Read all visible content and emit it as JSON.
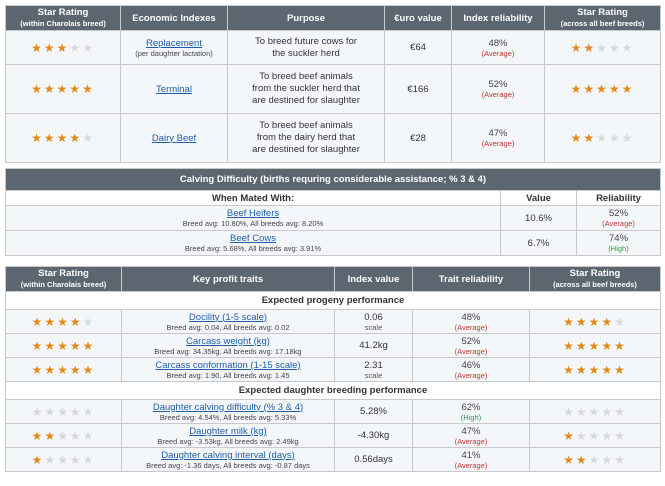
{
  "table1": {
    "headers": {
      "star_rating_within": "Star Rating",
      "star_rating_within_sub": "(within Charolais breed)",
      "economic_indexes": "Economic Indexes",
      "purpose": "Purpose",
      "euro_value": "€uro value",
      "index_reliability": "Index reliability",
      "star_rating_across": "Star Rating",
      "star_rating_across_sub": "(across all beef breeds)"
    },
    "rows": [
      {
        "stars_within": 3,
        "index": "Replacement",
        "index_sub": "(per daughter lactation)",
        "purpose_lines": [
          "To breed future cows for",
          "the suckler herd"
        ],
        "value": "€64",
        "reliability": "48%",
        "reliability_label": "(Average)",
        "stars_across": 2
      },
      {
        "stars_within": 5,
        "index": "Terminal",
        "index_sub": "",
        "purpose_lines": [
          "To breed beef animals",
          "from the suckler herd that",
          "are destined for slaughter"
        ],
        "value": "€166",
        "reliability": "52%",
        "reliability_label": "(Average)",
        "stars_across": 5
      },
      {
        "stars_within": 4,
        "index": "Dairy Beef",
        "index_sub": "",
        "purpose_lines": [
          "To breed beef animals",
          "from the dairy herd that",
          "are destined for slaughter"
        ],
        "value": "€28",
        "reliability": "47%",
        "reliability_label": "(Average)",
        "stars_across": 2
      }
    ]
  },
  "table2": {
    "title": "Calving Difficulty (births requring considerable assistance; % 3 & 4)",
    "headers": {
      "mated_with": "When Mated With:",
      "value": "Value",
      "reliability": "Reliability"
    },
    "rows": [
      {
        "label": "Beef Heifers",
        "sub": "Breed avg: 10.80%, All breeds avg: 8.20%",
        "value": "10.6%",
        "reliability": "52%",
        "reliability_label": "(Average)",
        "level": "avg"
      },
      {
        "label": "Beef Cows",
        "sub": "Breed avg: 5.68%, All breeds avg: 3.91%",
        "value": "6.7%",
        "reliability": "74%",
        "reliability_label": "(High)",
        "level": "high"
      }
    ]
  },
  "table3": {
    "headers": {
      "star_rating_within": "Star Rating",
      "star_rating_within_sub": "(within Charolais breed)",
      "key_traits": "Key profit traits",
      "index_value": "Index value",
      "trait_reliability": "Trait reliability",
      "star_rating_across": "Star Rating",
      "star_rating_across_sub": "(across all beef breeds)"
    },
    "section_progeny": "Expected progeny performance",
    "progeny_rows": [
      {
        "stars_within": 4,
        "trait": "Docility (1-5 scale)",
        "sub": "Breed avg: 0.04, All breeds avg: 0.02",
        "value": "0.06",
        "unit": "scale",
        "reliability": "48%",
        "reliability_label": "(Average)",
        "level": "avg",
        "stars_across": 4
      },
      {
        "stars_within": 5,
        "trait": "Carcass weight (kg)",
        "sub": "Breed avg: 34.35kg, All breeds avg: 17.18kg",
        "value": "41.2kg",
        "unit": "",
        "reliability": "52%",
        "reliability_label": "(Average)",
        "level": "avg",
        "stars_across": 5
      },
      {
        "stars_within": 5,
        "trait": "Carcass conformation (1-15 scale)",
        "sub": "Breed avg: 1.90, All breeds avg: 1.45",
        "value": "2.31",
        "unit": "scale",
        "reliability": "46%",
        "reliability_label": "(Average)",
        "level": "avg",
        "stars_across": 5
      }
    ],
    "section_daughter": "Expected daughter breeding performance",
    "daughter_rows": [
      {
        "stars_within": 0,
        "trait": "Daughter calving difficulty (% 3 & 4)",
        "sub": "Breed avg: 4.54%, All breeds avg: 5.33%",
        "value": "5.28%",
        "unit": "",
        "reliability": "62%",
        "reliability_label": "(High)",
        "level": "high",
        "stars_across": 0
      },
      {
        "stars_within": 2,
        "trait": "Daughter milk (kg)",
        "sub": "Breed avg: -3.53kg, All breeds avg: 2.49kg",
        "value": "-4.30kg",
        "unit": "",
        "reliability": "47%",
        "reliability_label": "(Average)",
        "level": "avg",
        "stars_across": 1
      },
      {
        "stars_within": 1,
        "trait": "Daughter calving interval (days)",
        "sub": "Breed avg: -1.36 days, All breeds avg: -0.87 days",
        "value": "0.56days",
        "unit": "",
        "reliability": "41%",
        "reliability_label": "(Average)",
        "level": "avg",
        "stars_across": 2
      }
    ]
  },
  "colors": {
    "header_bg": "#5b6670",
    "star_on": "#e28a1c",
    "star_off": "#d8d8d8",
    "link": "#1f5ea8",
    "average": "#c0392b",
    "high": "#2e9e3e"
  },
  "icons": {
    "star": "star-icon"
  }
}
